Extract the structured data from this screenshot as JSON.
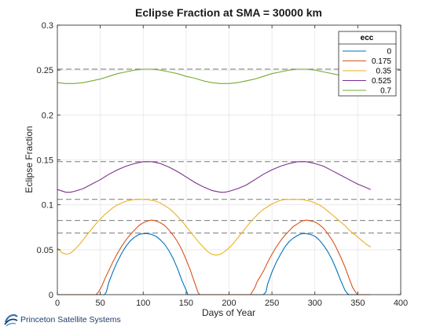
{
  "chart_data": {
    "type": "line",
    "title": "Eclipse Fraction at SMA = 30000 km",
    "xlabel": "Days of Year",
    "ylabel": "Eclipse Fraction",
    "xlim": [
      0,
      400
    ],
    "ylim": [
      0,
      0.3
    ],
    "xticks": [
      "0",
      "50",
      "100",
      "150",
      "200",
      "250",
      "300",
      "350",
      "400"
    ],
    "yticks": [
      "0",
      "0.05",
      "0.1",
      "0.15",
      "0.2",
      "0.25",
      "0.3"
    ],
    "grid": true,
    "legend": {
      "title": "ecc",
      "position": "top-right"
    },
    "reference_lines": [
      0.0685,
      0.0825,
      0.106,
      0.148,
      0.251
    ],
    "series": [
      {
        "name": "0",
        "color": "#0072BD",
        "x": [
          0,
          55,
          57,
          60,
          65,
          70,
          75,
          80,
          85,
          90,
          95,
          100,
          105,
          110,
          115,
          120,
          125,
          130,
          135,
          140,
          145,
          150,
          152,
          154,
          230,
          240,
          243,
          245,
          250,
          255,
          260,
          265,
          270,
          275,
          280,
          285,
          290,
          295,
          300,
          305,
          310,
          315,
          320,
          325,
          330,
          335,
          338,
          340,
          365
        ],
        "y": [
          0,
          0,
          0.003,
          0.014,
          0.026,
          0.037,
          0.046,
          0.054,
          0.06,
          0.064,
          0.067,
          0.068,
          0.068,
          0.067,
          0.065,
          0.061,
          0.056,
          0.049,
          0.04,
          0.029,
          0.016,
          0.005,
          0,
          0,
          0,
          0,
          0.003,
          0.012,
          0.025,
          0.036,
          0.045,
          0.053,
          0.059,
          0.063,
          0.066,
          0.068,
          0.068,
          0.067,
          0.065,
          0.061,
          0.055,
          0.048,
          0.039,
          0.028,
          0.016,
          0.005,
          0.001,
          0,
          0
        ]
      },
      {
        "name": "0.175",
        "color": "#D95319",
        "x": [
          0,
          45,
          48,
          52,
          56,
          60,
          65,
          70,
          75,
          80,
          85,
          90,
          95,
          100,
          105,
          110,
          115,
          120,
          125,
          130,
          135,
          140,
          145,
          150,
          155,
          160,
          164,
          166,
          225,
          227,
          230,
          233,
          237,
          241,
          245,
          250,
          255,
          260,
          265,
          270,
          275,
          280,
          285,
          290,
          295,
          300,
          305,
          310,
          315,
          320,
          325,
          330,
          335,
          340,
          344,
          348,
          350,
          365
        ],
        "y": [
          0,
          0,
          0.003,
          0.01,
          0.019,
          0.027,
          0.037,
          0.046,
          0.054,
          0.061,
          0.067,
          0.072,
          0.077,
          0.08,
          0.082,
          0.083,
          0.082,
          0.08,
          0.077,
          0.072,
          0.066,
          0.059,
          0.05,
          0.039,
          0.027,
          0.013,
          0.002,
          0,
          0,
          0.003,
          0.008,
          0.015,
          0.021,
          0.028,
          0.036,
          0.045,
          0.053,
          0.06,
          0.066,
          0.071,
          0.076,
          0.079,
          0.082,
          0.083,
          0.082,
          0.081,
          0.078,
          0.074,
          0.068,
          0.061,
          0.052,
          0.042,
          0.031,
          0.018,
          0.008,
          0.002,
          0,
          0
        ]
      },
      {
        "name": "0.35",
        "color": "#EDB120",
        "x": [
          0,
          5,
          10,
          15,
          20,
          25,
          30,
          35,
          40,
          45,
          50,
          55,
          60,
          65,
          70,
          75,
          80,
          85,
          90,
          95,
          100,
          105,
          110,
          115,
          120,
          125,
          130,
          135,
          140,
          145,
          150,
          155,
          160,
          165,
          170,
          175,
          180,
          185,
          190,
          195,
          200,
          205,
          210,
          215,
          220,
          225,
          230,
          235,
          240,
          245,
          250,
          255,
          260,
          265,
          270,
          275,
          280,
          285,
          290,
          295,
          300,
          305,
          310,
          315,
          320,
          325,
          330,
          335,
          340,
          345,
          350,
          355,
          360,
          365
        ],
        "y": [
          0.052,
          0.047,
          0.045,
          0.046,
          0.05,
          0.055,
          0.061,
          0.067,
          0.073,
          0.079,
          0.084,
          0.089,
          0.093,
          0.097,
          0.1,
          0.102,
          0.104,
          0.105,
          0.106,
          0.106,
          0.106,
          0.106,
          0.105,
          0.104,
          0.102,
          0.099,
          0.096,
          0.092,
          0.087,
          0.082,
          0.076,
          0.07,
          0.064,
          0.058,
          0.053,
          0.048,
          0.045,
          0.044,
          0.045,
          0.048,
          0.052,
          0.057,
          0.063,
          0.069,
          0.075,
          0.081,
          0.086,
          0.091,
          0.095,
          0.098,
          0.101,
          0.103,
          0.105,
          0.106,
          0.106,
          0.106,
          0.106,
          0.106,
          0.105,
          0.104,
          0.102,
          0.1,
          0.097,
          0.093,
          0.089,
          0.085,
          0.081,
          0.077,
          0.072,
          0.068,
          0.064,
          0.06,
          0.056,
          0.053
        ]
      },
      {
        "name": "0.525",
        "color": "#7E2F8E",
        "x": [
          0,
          10,
          15,
          20,
          30,
          40,
          50,
          60,
          70,
          80,
          90,
          100,
          105,
          110,
          120,
          130,
          140,
          150,
          160,
          170,
          180,
          190,
          195,
          200,
          210,
          220,
          230,
          240,
          250,
          260,
          270,
          280,
          285,
          290,
          300,
          310,
          320,
          330,
          340,
          350,
          360,
          365
        ],
        "y": [
          0.117,
          0.114,
          0.114,
          0.115,
          0.118,
          0.123,
          0.128,
          0.134,
          0.139,
          0.143,
          0.146,
          0.148,
          0.148,
          0.148,
          0.146,
          0.142,
          0.137,
          0.131,
          0.125,
          0.12,
          0.116,
          0.114,
          0.114,
          0.115,
          0.118,
          0.122,
          0.128,
          0.134,
          0.139,
          0.143,
          0.146,
          0.148,
          0.148,
          0.148,
          0.146,
          0.143,
          0.138,
          0.133,
          0.128,
          0.123,
          0.119,
          0.117
        ]
      },
      {
        "name": "0.7",
        "color": "#77AC30",
        "x": [
          0,
          10,
          15,
          20,
          30,
          40,
          50,
          60,
          70,
          80,
          90,
          100,
          105,
          110,
          120,
          130,
          140,
          150,
          160,
          170,
          180,
          190,
          195,
          200,
          210,
          220,
          230,
          240,
          250,
          260,
          270,
          280,
          285,
          290,
          300,
          310,
          320,
          330,
          340,
          350,
          360,
          365
        ],
        "y": [
          0.236,
          0.235,
          0.235,
          0.235,
          0.236,
          0.238,
          0.24,
          0.243,
          0.246,
          0.248,
          0.25,
          0.251,
          0.251,
          0.251,
          0.25,
          0.248,
          0.246,
          0.243,
          0.241,
          0.238,
          0.236,
          0.235,
          0.235,
          0.235,
          0.236,
          0.238,
          0.24,
          0.243,
          0.246,
          0.248,
          0.25,
          0.251,
          0.251,
          0.251,
          0.25,
          0.248,
          0.246,
          0.244,
          0.242,
          0.24,
          0.238,
          0.237
        ]
      }
    ]
  },
  "logo": {
    "text": "Princeton Satellite Systems",
    "icon": "globe-icon"
  }
}
